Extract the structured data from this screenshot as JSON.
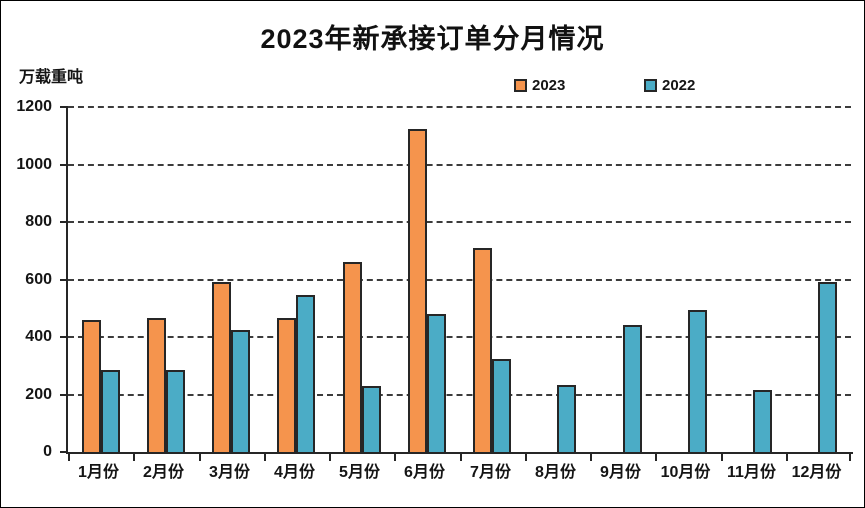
{
  "title": "2023年新承接订单分月情况",
  "unit_label": "万载重吨",
  "legend": {
    "items": [
      {
        "label": "2023",
        "color": "#F5944D"
      },
      {
        "label": "2022",
        "color": "#4BACC6"
      }
    ]
  },
  "chart_data": {
    "type": "bar",
    "title": "2023年新承接订单分月情况",
    "xlabel": "",
    "ylabel": "万载重吨",
    "categories": [
      "1月份",
      "2月份",
      "3月份",
      "4月份",
      "5月份",
      "6月份",
      "7月份",
      "8月份",
      "9月份",
      "10月份",
      "11月份",
      "12月份"
    ],
    "series": [
      {
        "name": "2023",
        "color": "#F5944D",
        "values": [
          460,
          465,
          593,
          465,
          662,
          1122,
          709,
          null,
          null,
          null,
          null,
          null
        ]
      },
      {
        "name": "2022",
        "color": "#4BACC6",
        "values": [
          285,
          285,
          425,
          545,
          230,
          480,
          325,
          232,
          443,
          495,
          217,
          590
        ]
      }
    ],
    "ylim": [
      0,
      1200
    ],
    "ytick_step": 200,
    "grid": "horizontal-dashed",
    "legend_position": "top-center",
    "bar_border_color": "#262626"
  }
}
